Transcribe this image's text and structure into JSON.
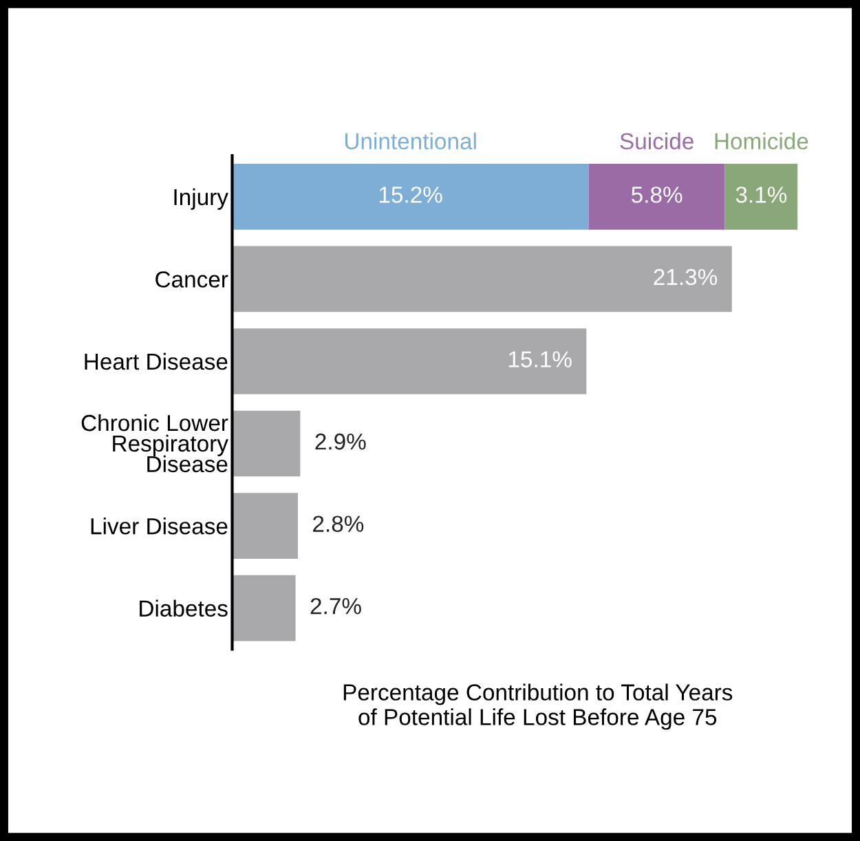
{
  "chart_data": {
    "type": "bar",
    "orientation": "horizontal",
    "stacked": true,
    "legend": false,
    "xlabel": "Percentage Contribution to Total Years\nof Potential Life Lost Before Age 75",
    "categories": [
      "Injury",
      "Cancer",
      "Heart Disease",
      "Chronic Lower\nRespiratory\nDisease",
      "Liver Disease",
      "Diabetes"
    ],
    "series": [
      {
        "name": "Unintentional",
        "color": "#7eaed6",
        "values": [
          15.2,
          null,
          null,
          null,
          null,
          null
        ],
        "value_labels": [
          "15.2%",
          null,
          null,
          null,
          null,
          null
        ]
      },
      {
        "name": "Suicide",
        "color": "#9b6ba5",
        "values": [
          5.8,
          null,
          null,
          null,
          null,
          null
        ],
        "value_labels": [
          "5.8%",
          null,
          null,
          null,
          null,
          null
        ]
      },
      {
        "name": "Homicide",
        "color": "#8aa77a",
        "values": [
          3.1,
          null,
          null,
          null,
          null,
          null
        ],
        "value_labels": [
          "3.1%",
          null,
          null,
          null,
          null,
          null
        ]
      },
      {
        "color": "#a9a9ab",
        "values": [
          null,
          21.3,
          15.1,
          2.9,
          2.8,
          2.7
        ],
        "value_labels": [
          null,
          "21.3%",
          "15.1%",
          "2.9%",
          "2.8%",
          "2.7%"
        ]
      }
    ]
  }
}
